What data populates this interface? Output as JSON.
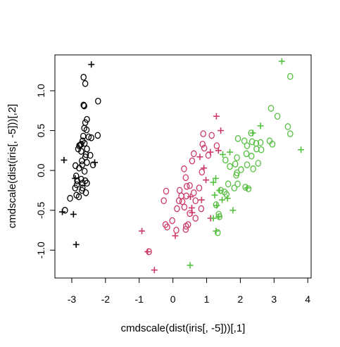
{
  "chart_data": {
    "type": "scatter",
    "xlabel": "cmdscale(dist(iris[, -5]))[,1]",
    "ylabel": "cmdscale(dist(iris[, -5]))[,2]",
    "xlim": [
      -3.5,
      4.1
    ],
    "ylim": [
      -1.35,
      1.45
    ],
    "x_ticks": [
      -3,
      -2,
      -1,
      0,
      1,
      2,
      3,
      4
    ],
    "y_ticks": [
      -1.0,
      -0.5,
      0.0,
      0.5,
      1.0
    ],
    "y_tick_labels": [
      "-1.0",
      "-0.5",
      "0.0",
      "0.5",
      "1.0"
    ],
    "grid": false,
    "series": [
      {
        "color": "#000000",
        "marker": "circle",
        "points": [
          [
            -2.65,
            1.17
          ],
          [
            -2.6,
            1.09
          ],
          [
            -2.65,
            0.82
          ],
          [
            -2.63,
            0.81
          ],
          [
            -2.22,
            0.87
          ],
          [
            -2.55,
            0.64
          ],
          [
            -2.6,
            0.6
          ],
          [
            -2.63,
            0.53
          ],
          [
            -2.56,
            0.51
          ],
          [
            -2.5,
            0.42
          ],
          [
            -2.42,
            0.41
          ],
          [
            -2.23,
            0.44
          ],
          [
            -2.66,
            0.43
          ],
          [
            -2.68,
            0.37
          ],
          [
            -2.72,
            0.33
          ],
          [
            -2.75,
            0.32
          ],
          [
            -2.78,
            0.31
          ],
          [
            -2.81,
            0.27
          ],
          [
            -2.62,
            0.34
          ],
          [
            -2.55,
            0.27
          ],
          [
            -2.58,
            0.2
          ],
          [
            -2.72,
            0.24
          ],
          [
            -2.6,
            0.17
          ],
          [
            -2.45,
            0.19
          ],
          [
            -2.7,
            0.12
          ],
          [
            -2.89,
            0.06
          ],
          [
            -2.78,
            0.03
          ],
          [
            -2.69,
            0.07
          ],
          [
            -2.55,
            0.1
          ],
          [
            -2.37,
            0.07
          ],
          [
            -2.62,
            -0.01
          ],
          [
            -2.87,
            -0.07
          ],
          [
            -2.84,
            -0.13
          ],
          [
            -2.72,
            -0.11
          ],
          [
            -2.6,
            -0.13
          ],
          [
            -2.85,
            -0.18
          ],
          [
            -2.68,
            -0.16
          ],
          [
            -2.55,
            -0.16
          ],
          [
            -2.9,
            -0.22
          ],
          [
            -2.7,
            -0.25
          ],
          [
            -2.58,
            -0.28
          ],
          [
            -2.68,
            -0.22
          ],
          [
            -2.79,
            -0.33
          ],
          [
            -2.86,
            -0.31
          ],
          [
            -3.05,
            -0.35
          ],
          [
            -3.2,
            -0.5
          ]
        ]
      },
      {
        "color": "#000000",
        "marker": "plus",
        "points": [
          [
            -2.42,
            1.33
          ],
          [
            -2.32,
            0.1
          ],
          [
            -3.23,
            0.13
          ],
          [
            -2.95,
            -0.55
          ],
          [
            -3.28,
            -0.52
          ],
          [
            -2.87,
            -0.93
          ],
          [
            -2.9,
            -0.1
          ]
        ]
      },
      {
        "color": "#cd3a66",
        "marker": "circle",
        "points": [
          [
            0.9,
            0.46
          ],
          [
            0.88,
            0.33
          ],
          [
            1.15,
            0.44
          ],
          [
            1.05,
            0.19
          ],
          [
            0.93,
            0.28
          ],
          [
            0.62,
            0.21
          ],
          [
            1.3,
            0.31
          ],
          [
            0.86,
            -0.02
          ],
          [
            0.57,
            0.12
          ],
          [
            0.33,
            0.02
          ],
          [
            0.38,
            -0.09
          ],
          [
            0.41,
            -0.2
          ],
          [
            0.5,
            -0.19
          ],
          [
            0.2,
            -0.25
          ],
          [
            0.25,
            -0.32
          ],
          [
            0.78,
            -0.22
          ],
          [
            0.62,
            -0.28
          ],
          [
            0.67,
            -0.38
          ],
          [
            0.18,
            -0.38
          ],
          [
            -0.2,
            -0.26
          ],
          [
            -0.27,
            -0.38
          ],
          [
            0.28,
            -0.39
          ],
          [
            0.34,
            -0.46
          ],
          [
            0.12,
            -0.48
          ],
          [
            0.5,
            -0.54
          ],
          [
            0.84,
            -0.48
          ],
          [
            0.67,
            -0.6
          ],
          [
            -0.02,
            -0.63
          ],
          [
            0.45,
            -0.68
          ],
          [
            0.39,
            -0.7
          ],
          [
            -0.17,
            -0.71
          ],
          [
            -0.22,
            -0.68
          ],
          [
            0.38,
            -0.74
          ],
          [
            0.1,
            -0.75
          ],
          [
            -0.71,
            -1.02
          ],
          [
            0.4,
            -0.32
          ]
        ]
      },
      {
        "color": "#cd3a66",
        "marker": "plus",
        "points": [
          [
            1.29,
            0.68
          ],
          [
            1.42,
            0.5
          ],
          [
            1.11,
            0.23
          ],
          [
            1.35,
            0.25
          ],
          [
            0.8,
            0.17
          ],
          [
            0.92,
            0.03
          ],
          [
            0.98,
            -0.12
          ],
          [
            0.52,
            -0.33
          ],
          [
            0.56,
            -0.47
          ],
          [
            0.85,
            -0.37
          ],
          [
            0.57,
            -0.53
          ],
          [
            0.07,
            -0.82
          ],
          [
            -0.92,
            -0.76
          ],
          [
            -0.75,
            -1.02
          ],
          [
            -0.55,
            -1.25
          ],
          [
            1.12,
            -0.6
          ]
        ]
      },
      {
        "color": "#55c040",
        "marker": "circle",
        "points": [
          [
            3.48,
            1.18
          ],
          [
            2.91,
            0.78
          ],
          [
            3.1,
            0.68
          ],
          [
            3.41,
            0.55
          ],
          [
            3.48,
            0.46
          ],
          [
            2.32,
            0.47
          ],
          [
            1.93,
            0.4
          ],
          [
            2.12,
            0.37
          ],
          [
            2.2,
            0.31
          ],
          [
            2.35,
            0.36
          ],
          [
            2.47,
            0.34
          ],
          [
            2.6,
            0.35
          ],
          [
            2.87,
            0.37
          ],
          [
            2.95,
            0.33
          ],
          [
            2.18,
            0.21
          ],
          [
            2.33,
            0.18
          ],
          [
            2.48,
            0.27
          ],
          [
            2.62,
            0.26
          ],
          [
            1.9,
            0.16
          ],
          [
            1.85,
            0.08
          ],
          [
            1.69,
            0.05
          ],
          [
            1.56,
            0.13
          ],
          [
            2.02,
            0.01
          ],
          [
            2.2,
            0.07
          ],
          [
            2.38,
            0.02
          ],
          [
            2.53,
            0.09
          ],
          [
            1.9,
            -0.03
          ],
          [
            1.64,
            -0.17
          ],
          [
            1.92,
            -0.17
          ],
          [
            2.15,
            -0.21
          ],
          [
            2.24,
            -0.23
          ],
          [
            1.82,
            -0.22
          ],
          [
            1.42,
            -0.25
          ],
          [
            1.59,
            -0.3
          ],
          [
            1.53,
            -0.27
          ],
          [
            1.88,
            -0.06
          ],
          [
            1.36,
            -0.55
          ],
          [
            1.38,
            -0.58
          ],
          [
            1.33,
            -0.78
          ],
          [
            1.28,
            -0.43
          ]
        ]
      },
      {
        "color": "#55c040",
        "marker": "plus",
        "points": [
          [
            3.23,
            1.37
          ],
          [
            3.8,
            0.26
          ],
          [
            2.6,
            0.56
          ],
          [
            2.37,
            0.47
          ],
          [
            1.69,
            0.23
          ],
          [
            1.48,
            0.2
          ],
          [
            1.27,
            -0.1
          ],
          [
            1.2,
            -0.15
          ],
          [
            1.24,
            -0.31
          ],
          [
            1.46,
            -0.37
          ],
          [
            1.38,
            -0.25
          ],
          [
            1.78,
            -0.5
          ],
          [
            1.3,
            -0.44
          ],
          [
            1.2,
            -0.6
          ],
          [
            1.36,
            -0.58
          ],
          [
            1.28,
            -0.76
          ],
          [
            0.51,
            -1.19
          ],
          [
            1.62,
            -0.35
          ],
          [
            2.2,
            -0.22
          ]
        ]
      }
    ]
  }
}
